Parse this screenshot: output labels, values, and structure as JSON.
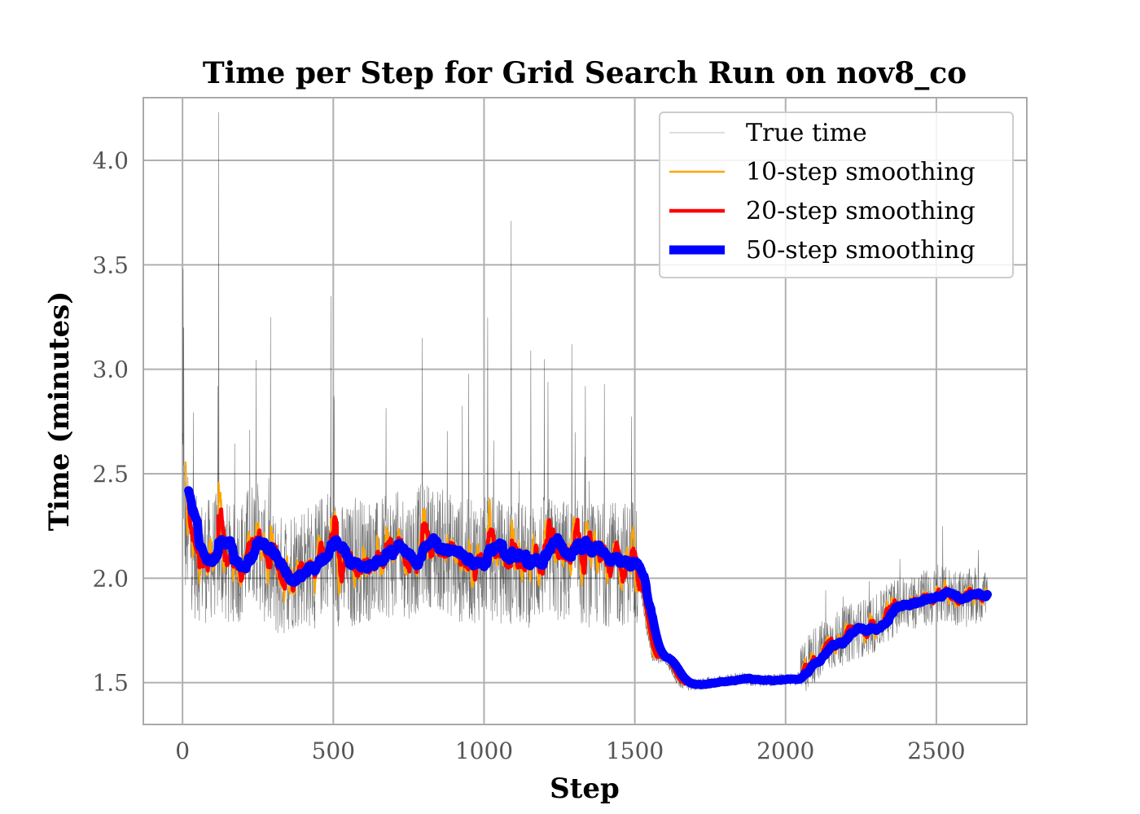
{
  "chart_data": {
    "type": "line",
    "title": "Time per Step for Grid Search Run on nov8_co",
    "xlabel": "Step",
    "ylabel": "Time (minutes)",
    "xlim": [
      -130,
      2800
    ],
    "ylim": [
      1.3,
      4.3
    ],
    "xticks": [
      0,
      500,
      1000,
      1500,
      2000,
      2500
    ],
    "xtick_labels": [
      "0",
      "500",
      "1000",
      "1500",
      "2000",
      "2500"
    ],
    "yticks": [
      1.5,
      2.0,
      2.5,
      3.0,
      3.5,
      4.0
    ],
    "ytick_labels": [
      "1.5",
      "2.0",
      "2.5",
      "3.0",
      "3.5",
      "4.0"
    ],
    "grid": true,
    "legend_position": "top-right",
    "series": [
      {
        "name": "True time",
        "color": "#000000"
      },
      {
        "name": "10-step smoothing",
        "color": "#ffa500"
      },
      {
        "name": "20-step smoothing",
        "color": "#ff0000"
      },
      {
        "name": "50-step smoothing",
        "color": "#0000ff"
      }
    ],
    "trend": {
      "x": [
        20,
        40,
        80,
        120,
        160,
        200,
        240,
        280,
        320,
        360,
        400,
        440,
        480,
        520,
        560,
        600,
        640,
        680,
        720,
        760,
        800,
        840,
        880,
        920,
        960,
        1000,
        1050,
        1100,
        1150,
        1200,
        1250,
        1300,
        1350,
        1400,
        1450,
        1490,
        1500,
        1520,
        1540,
        1560,
        1600,
        1640,
        1660,
        1700,
        1750,
        1800,
        1850,
        1900,
        1950,
        2000,
        2030,
        2050,
        2070,
        2100,
        2150,
        2200,
        2250,
        2300,
        2350,
        2400,
        2450,
        2500,
        2550,
        2600,
        2640,
        2670
      ],
      "y": [
        2.2,
        2.1,
        2.08,
        2.12,
        2.05,
        2.1,
        2.2,
        2.05,
        2.0,
        2.05,
        2.07,
        2.05,
        2.16,
        2.06,
        2.05,
        2.1,
        2.07,
        2.1,
        2.12,
        2.1,
        2.17,
        2.15,
        2.12,
        2.08,
        2.08,
        2.1,
        2.08,
        2.07,
        2.06,
        2.1,
        2.08,
        2.08,
        2.06,
        2.07,
        2.06,
        2.09,
        2.12,
        1.95,
        1.75,
        1.62,
        1.62,
        1.52,
        1.49,
        1.49,
        1.5,
        1.51,
        1.52,
        1.51,
        1.51,
        1.52,
        1.51,
        1.53,
        1.6,
        1.64,
        1.69,
        1.73,
        1.76,
        1.78,
        1.85,
        1.88,
        1.9,
        1.91,
        1.92,
        1.9,
        1.92,
        1.93
      ]
    }
  }
}
